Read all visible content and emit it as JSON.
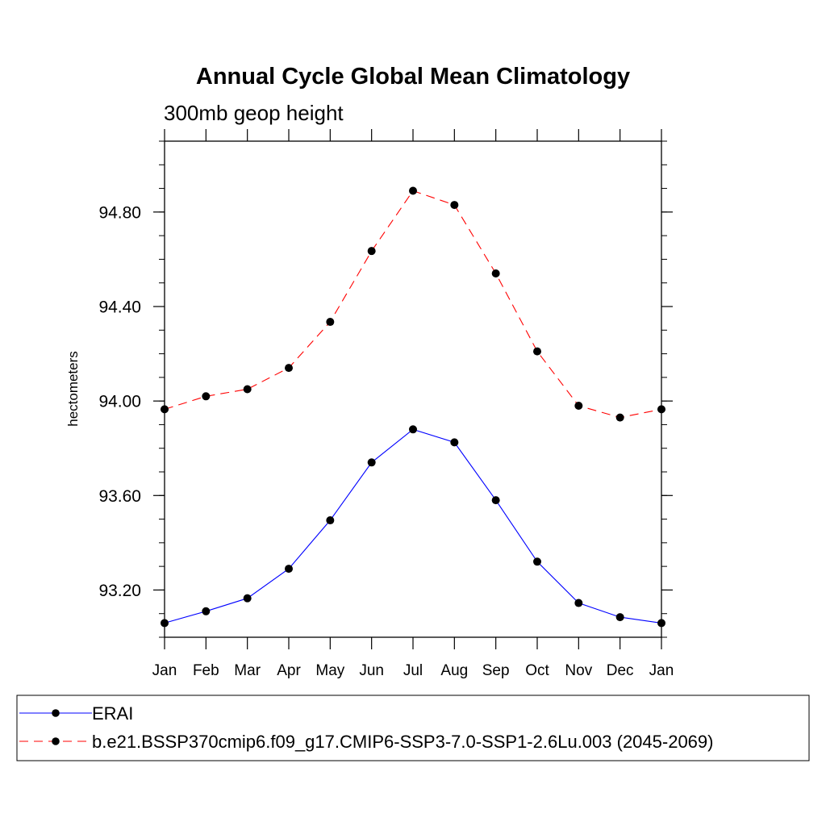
{
  "chart_data": {
    "type": "line",
    "title": "Annual Cycle Global Mean Climatology",
    "subtitle": "300mb geop height",
    "xlabel": "",
    "ylabel": "hectometers",
    "categories": [
      "Jan",
      "Feb",
      "Mar",
      "Apr",
      "May",
      "Jun",
      "Jul",
      "Aug",
      "Sep",
      "Oct",
      "Nov",
      "Dec",
      "Jan"
    ],
    "ylim": [
      93.0,
      95.1
    ],
    "yticks": [
      93.2,
      93.6,
      94.0,
      94.4,
      94.8
    ],
    "ytick_labels": [
      "93.20",
      "93.60",
      "94.00",
      "94.40",
      "94.80"
    ],
    "yminor_step": 0.1,
    "grid": false,
    "legend_position": "bottom",
    "series": [
      {
        "name": "ERAI",
        "color": "#0000ff",
        "dash": "solid",
        "marker": "circle",
        "values": [
          93.06,
          93.11,
          93.165,
          93.29,
          93.495,
          93.74,
          93.88,
          93.825,
          93.58,
          93.32,
          93.145,
          93.085,
          93.06
        ]
      },
      {
        "name": "b.e21.BSSP370cmip6.f09_g17.CMIP6-SSP3-7.0-SSP1-2.6Lu.003 (2045-2069)",
        "color": "#ff0000",
        "dash": "dashed",
        "marker": "circle",
        "values": [
          93.965,
          94.02,
          94.05,
          94.14,
          94.335,
          94.635,
          94.89,
          94.83,
          94.54,
          94.21,
          93.98,
          93.93,
          93.965
        ]
      }
    ]
  }
}
